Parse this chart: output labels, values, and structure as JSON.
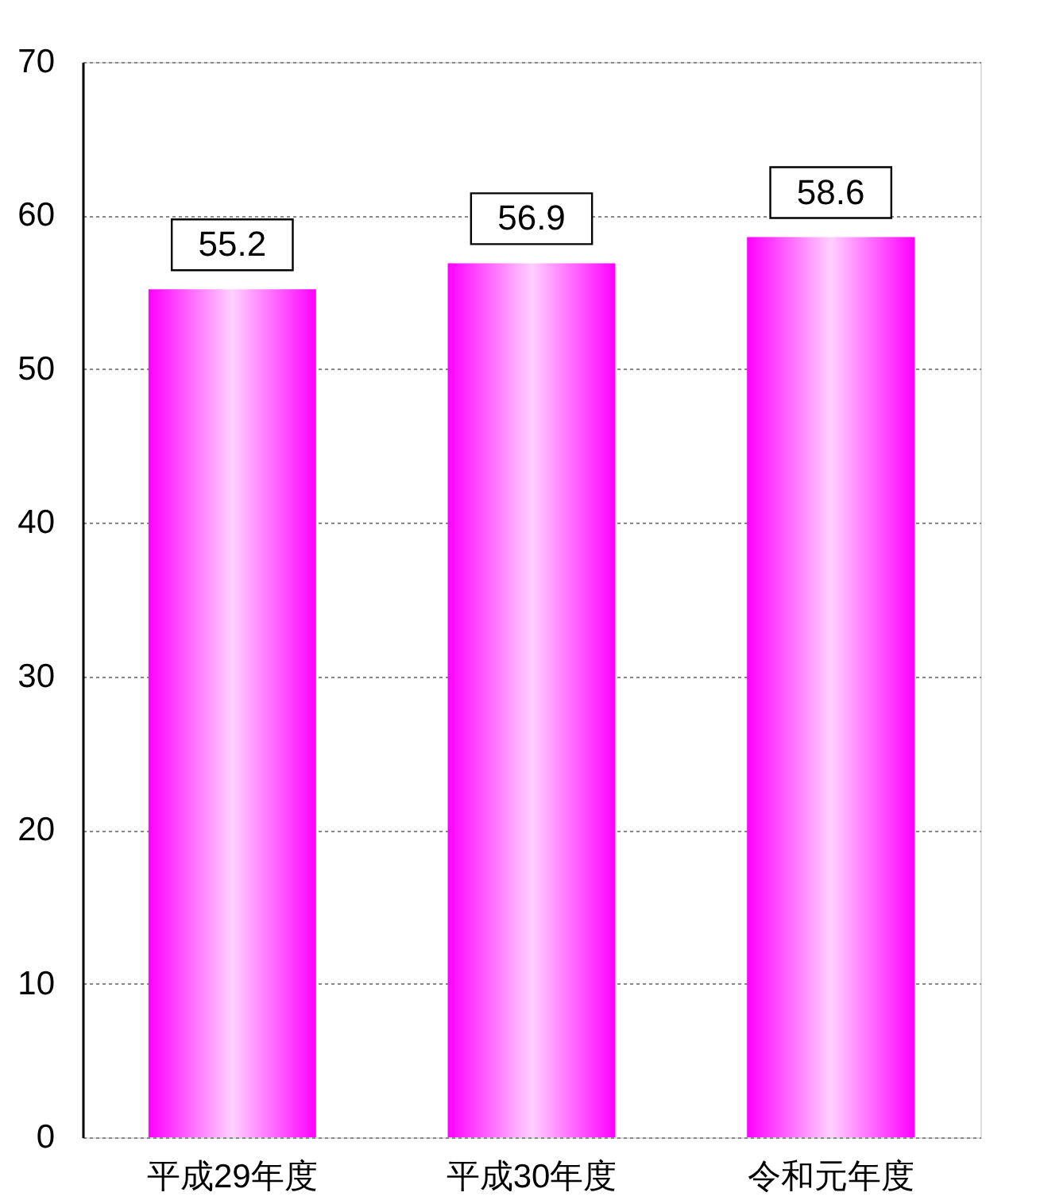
{
  "chart_data": {
    "type": "bar",
    "categories": [
      "平成29年度",
      "平成30年度",
      "令和元年度"
    ],
    "values": [
      55.2,
      56.9,
      58.6
    ],
    "color": "#ff00ff",
    "ylim": [
      0,
      70
    ],
    "yticks": [
      0,
      10,
      20,
      30,
      40,
      50,
      60,
      70
    ],
    "grid": "y",
    "data_labels": true
  }
}
